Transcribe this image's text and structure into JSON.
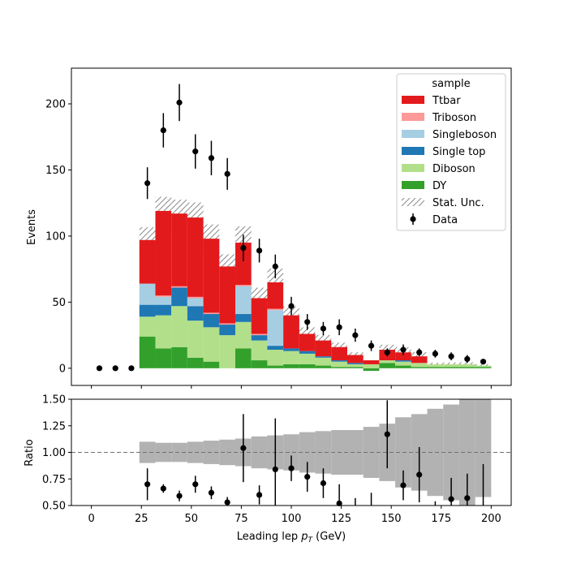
{
  "chart_data": {
    "type": "bar",
    "stacked": true,
    "histogram": true,
    "main_panel": {
      "ylabel": "Events",
      "ylim": [
        -13,
        227
      ],
      "yticks": [
        0,
        50,
        100,
        150,
        200
      ],
      "y_tick_labels": [
        "0",
        "50",
        "100",
        "150",
        "200"
      ]
    },
    "ratio_panel": {
      "ylabel": "Ratio",
      "ylim": [
        0.5,
        1.5
      ],
      "yticks": [
        0.5,
        0.75,
        1.0,
        1.25,
        1.5
      ],
      "y_tick_labels": [
        "0.50",
        "0.75",
        "1.00",
        "1.25",
        "1.50"
      ],
      "reference_line": 1.0
    },
    "xlabel": "Leading lep",
    "xlabel_symbol": "p",
    "xlabel_subscript": "T",
    "xlabel_unit": "(GeV)",
    "xlim": [
      -10,
      210
    ],
    "xticks": [
      0,
      25,
      50,
      75,
      100,
      125,
      150,
      175,
      200
    ],
    "x_tick_labels": [
      "0",
      "25",
      "50",
      "75",
      "100",
      "125",
      "150",
      "175",
      "200"
    ],
    "bin_edges": [
      0,
      8,
      16,
      24,
      32,
      40,
      48,
      56,
      64,
      72,
      80,
      88,
      96,
      104,
      112,
      120,
      128,
      136,
      144,
      152,
      160,
      168,
      176,
      184,
      192,
      200
    ],
    "series": [
      {
        "name": "DY",
        "color": "#33a02c",
        "values": [
          0,
          0,
          0,
          24,
          15,
          16,
          8,
          5,
          0,
          15,
          6,
          2,
          3,
          3,
          2,
          1,
          1,
          -2,
          4,
          2,
          1,
          1,
          1,
          1,
          1
        ]
      },
      {
        "name": "Diboson",
        "color": "#b2df8a",
        "values": [
          0,
          0,
          0,
          15,
          25,
          31,
          28,
          26,
          25,
          20,
          15,
          12,
          10,
          8,
          6,
          4,
          2,
          3,
          2,
          3,
          3,
          2,
          2,
          2,
          1
        ]
      },
      {
        "name": "Single top",
        "color": "#1f78b4",
        "values": [
          0,
          0,
          0,
          9,
          8,
          14,
          11,
          10,
          8,
          6,
          4,
          3,
          2,
          2,
          1,
          1,
          1,
          0,
          0,
          1,
          0,
          0,
          0,
          0,
          0
        ]
      },
      {
        "name": "Singleboson",
        "color": "#a6cee3",
        "values": [
          0,
          0,
          0,
          16,
          6,
          0,
          6,
          0,
          0,
          21,
          0,
          27,
          0,
          0,
          0,
          0,
          0,
          0,
          0,
          0,
          0,
          0,
          0,
          0,
          0
        ]
      },
      {
        "name": "Triboson",
        "color": "#fb9a99",
        "values": [
          0,
          0,
          0,
          0,
          1,
          1,
          1,
          1,
          1,
          1,
          1,
          1,
          0,
          0,
          0,
          0,
          0,
          0,
          0,
          0,
          0,
          0,
          0,
          0,
          0
        ]
      },
      {
        "name": "Ttbar",
        "color": "#e31a1c",
        "values": [
          0,
          0,
          0,
          33,
          64,
          55,
          60,
          56,
          43,
          32,
          27,
          20,
          25,
          13,
          12,
          10,
          6,
          3,
          8,
          6,
          5,
          0,
          0,
          0,
          0
        ]
      }
    ],
    "stat_unc": {
      "name": "Stat. Unc.",
      "rel_up": [
        0,
        0,
        0,
        0.1,
        0.09,
        0.09,
        0.1,
        0.11,
        0.12,
        0.13,
        0.15,
        0.16,
        0.17,
        0.19,
        0.2,
        0.21,
        0.21,
        0.24,
        0.27,
        0.33,
        0.36,
        0.41,
        0.45,
        0.52,
        0.55
      ],
      "rel_down": [
        0,
        0,
        0,
        0.1,
        0.09,
        0.09,
        0.1,
        0.11,
        0.12,
        0.13,
        0.15,
        0.16,
        0.17,
        0.19,
        0.2,
        0.21,
        0.21,
        0.24,
        0.27,
        0.33,
        0.36,
        0.41,
        0.45,
        0.52,
        0.42
      ]
    },
    "data": {
      "name": "Data",
      "x": [
        4,
        12,
        20,
        28,
        36,
        44,
        52,
        60,
        68,
        76,
        84,
        92,
        100,
        108,
        116,
        124,
        132,
        140,
        148,
        156,
        164,
        172,
        180,
        188,
        196
      ],
      "y": [
        0,
        0,
        0,
        140,
        180,
        201,
        164,
        159,
        147,
        91,
        89,
        77,
        47,
        35,
        30,
        31,
        25,
        17,
        12,
        14,
        12,
        11,
        9,
        7,
        5
      ],
      "y_err": [
        0,
        0,
        0,
        12,
        13,
        14,
        13,
        13,
        12,
        10,
        9,
        9,
        7,
        6,
        5,
        6,
        5,
        4,
        3,
        4,
        3,
        3,
        3,
        3,
        2
      ]
    },
    "ratio": {
      "x": [
        28,
        36,
        44,
        52,
        60,
        68,
        76,
        84,
        92,
        100,
        108,
        116,
        124,
        132,
        140,
        148,
        156,
        164,
        172,
        180,
        188,
        196
      ],
      "y": [
        0.7,
        0.66,
        0.59,
        0.7,
        0.62,
        0.53,
        1.04,
        0.6,
        0.84,
        0.85,
        0.77,
        0.71,
        0.52,
        0.42,
        0.4,
        1.17,
        0.69,
        0.79,
        0.42,
        0.56,
        0.57,
        0.44
      ],
      "y_err": [
        0.15,
        0.04,
        0.05,
        0.08,
        0.06,
        0.05,
        0.32,
        0.09,
        0.48,
        0.12,
        0.14,
        0.14,
        0.18,
        0.15,
        0.22,
        0.32,
        0.14,
        0.26,
        0.12,
        0.2,
        0.23,
        0.45
      ]
    },
    "legend": {
      "title": "sample",
      "placement": "upper right",
      "entries": [
        "Ttbar",
        "Triboson",
        "Singleboson",
        "Single top",
        "Diboson",
        "DY",
        "Stat. Unc.",
        "Data"
      ]
    },
    "hatch_color": "#8c8c8c",
    "ratio_band_color": "#b2b2b2",
    "marker_color": "#000000"
  }
}
